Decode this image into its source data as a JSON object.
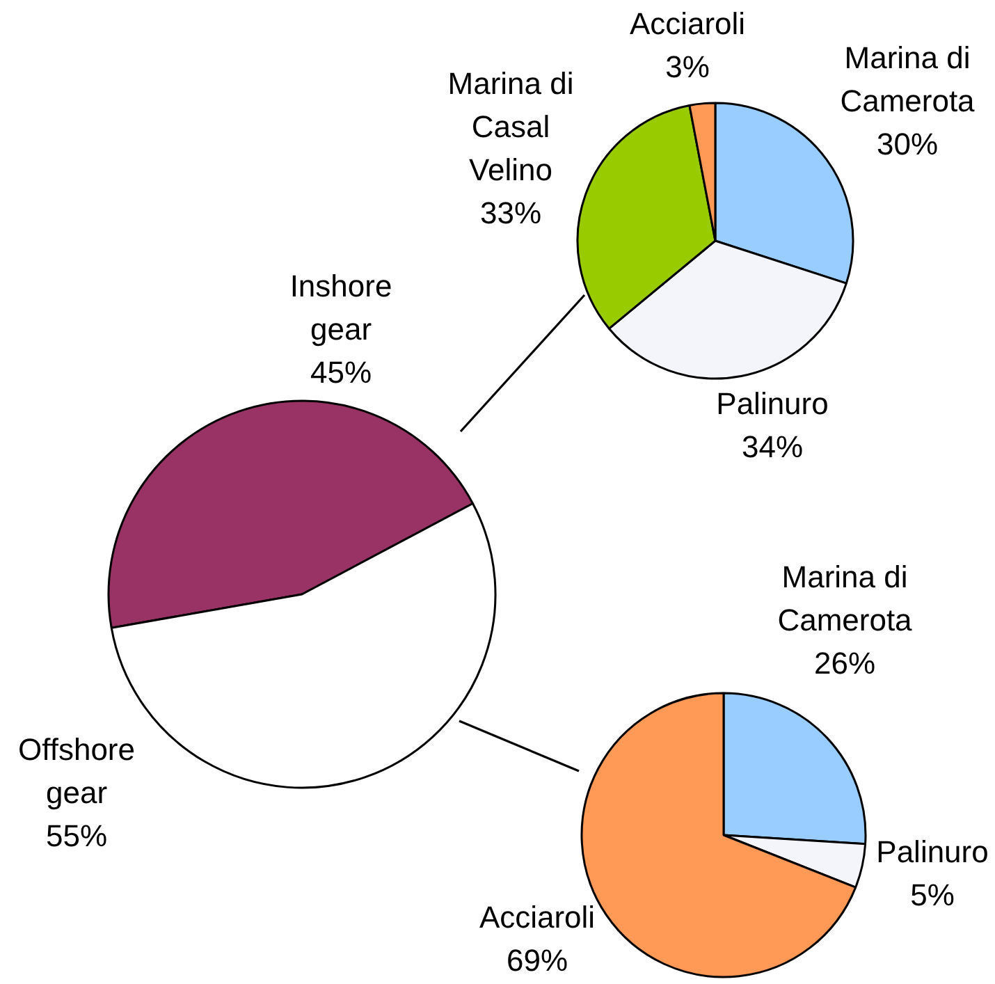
{
  "chart_data": [
    {
      "type": "pie",
      "categories": [
        "Inshore gear",
        "Offshore gear"
      ],
      "values": [
        45,
        55
      ],
      "colors": [
        "#993366",
        "#ffffff"
      ],
      "value_labels": [
        "45%",
        "55%"
      ]
    },
    {
      "type": "pie",
      "categories": [
        "Marina di Camerota",
        "Palinuro",
        "Marina di Casal Velino",
        "Acciaroli"
      ],
      "values": [
        30,
        34,
        33,
        3
      ],
      "colors": [
        "#99ccff",
        "#f4f4fb",
        "#99cc00",
        "#ff9955"
      ],
      "value_labels": [
        "30%",
        "34%",
        "33%",
        "3%"
      ]
    },
    {
      "type": "pie",
      "categories": [
        "Marina di Camerota",
        "Palinuro",
        "Acciaroli"
      ],
      "values": [
        26,
        5,
        69
      ],
      "colors": [
        "#99ccff",
        "#f4f4fb",
        "#ff9955"
      ],
      "value_labels": [
        "26%",
        "5%",
        "69%"
      ]
    }
  ]
}
